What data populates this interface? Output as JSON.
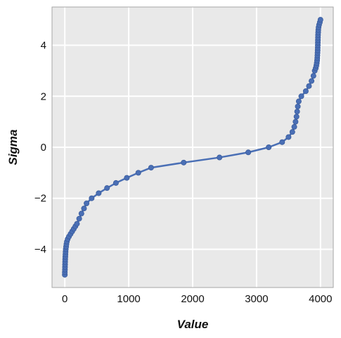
{
  "chart_data": {
    "type": "line",
    "title": "",
    "xlabel": "Value",
    "ylabel": "Sigma",
    "xlim": [
      -200,
      4200
    ],
    "ylim": [
      -5.5,
      5.5
    ],
    "grid": true,
    "legend": "none",
    "markers": true,
    "colors": {
      "plot_background": "#e9e9e9",
      "grid": "#ffffff",
      "frame": "#a6a6a6",
      "series": "#4a6fb5"
    },
    "x_ticks": [
      {
        "value": 0,
        "label": "0"
      },
      {
        "value": 1000,
        "label": "1000"
      },
      {
        "value": 2000,
        "label": "2000"
      },
      {
        "value": 3000,
        "label": "3000"
      },
      {
        "value": 4000,
        "label": "4000"
      }
    ],
    "y_ticks": [
      {
        "value": -4,
        "label": "−4"
      },
      {
        "value": -2,
        "label": "−2"
      },
      {
        "value": 0,
        "label": "0"
      },
      {
        "value": 2,
        "label": "2"
      },
      {
        "value": 4,
        "label": "4"
      }
    ],
    "series": [
      {
        "points": [
          {
            "x": 0,
            "y": -5.0
          },
          {
            "x": 0,
            "y": -4.9
          },
          {
            "x": 2,
            "y": -4.8
          },
          {
            "x": 3,
            "y": -4.7
          },
          {
            "x": 4,
            "y": -4.6
          },
          {
            "x": 5,
            "y": -4.5
          },
          {
            "x": 6,
            "y": -4.4
          },
          {
            "x": 8,
            "y": -4.3
          },
          {
            "x": 10,
            "y": -4.2
          },
          {
            "x": 12,
            "y": -4.1
          },
          {
            "x": 15,
            "y": -4.0
          },
          {
            "x": 20,
            "y": -3.9
          },
          {
            "x": 25,
            "y": -3.8
          },
          {
            "x": 32,
            "y": -3.7
          },
          {
            "x": 45,
            "y": -3.6
          },
          {
            "x": 65,
            "y": -3.5
          },
          {
            "x": 90,
            "y": -3.4
          },
          {
            "x": 115,
            "y": -3.3
          },
          {
            "x": 140,
            "y": -3.2
          },
          {
            "x": 165,
            "y": -3.1
          },
          {
            "x": 190,
            "y": -3.0
          },
          {
            "x": 225,
            "y": -2.8
          },
          {
            "x": 260,
            "y": -2.6
          },
          {
            "x": 300,
            "y": -2.4
          },
          {
            "x": 340,
            "y": -2.2
          },
          {
            "x": 420,
            "y": -2.0
          },
          {
            "x": 530,
            "y": -1.8
          },
          {
            "x": 660,
            "y": -1.6
          },
          {
            "x": 800,
            "y": -1.4
          },
          {
            "x": 970,
            "y": -1.2
          },
          {
            "x": 1150,
            "y": -1.0
          },
          {
            "x": 1350,
            "y": -0.8
          },
          {
            "x": 1860,
            "y": -0.6
          },
          {
            "x": 2420,
            "y": -0.4
          },
          {
            "x": 2870,
            "y": -0.2
          },
          {
            "x": 3190,
            "y": 0.0
          },
          {
            "x": 3400,
            "y": 0.2
          },
          {
            "x": 3500,
            "y": 0.4
          },
          {
            "x": 3560,
            "y": 0.6
          },
          {
            "x": 3590,
            "y": 0.8
          },
          {
            "x": 3610,
            "y": 1.0
          },
          {
            "x": 3625,
            "y": 1.2
          },
          {
            "x": 3635,
            "y": 1.4
          },
          {
            "x": 3645,
            "y": 1.6
          },
          {
            "x": 3660,
            "y": 1.8
          },
          {
            "x": 3700,
            "y": 2.0
          },
          {
            "x": 3770,
            "y": 2.2
          },
          {
            "x": 3820,
            "y": 2.4
          },
          {
            "x": 3860,
            "y": 2.6
          },
          {
            "x": 3890,
            "y": 2.8
          },
          {
            "x": 3910,
            "y": 3.0
          },
          {
            "x": 3925,
            "y": 3.1
          },
          {
            "x": 3935,
            "y": 3.2
          },
          {
            "x": 3942,
            "y": 3.3
          },
          {
            "x": 3947,
            "y": 3.4
          },
          {
            "x": 3950,
            "y": 3.5
          },
          {
            "x": 3952,
            "y": 3.6
          },
          {
            "x": 3954,
            "y": 3.7
          },
          {
            "x": 3956,
            "y": 3.8
          },
          {
            "x": 3957,
            "y": 3.9
          },
          {
            "x": 3958,
            "y": 4.0
          },
          {
            "x": 3959,
            "y": 4.1
          },
          {
            "x": 3960,
            "y": 4.2
          },
          {
            "x": 3961,
            "y": 4.3
          },
          {
            "x": 3962,
            "y": 4.4
          },
          {
            "x": 3964,
            "y": 4.5
          },
          {
            "x": 3966,
            "y": 4.6
          },
          {
            "x": 3970,
            "y": 4.7
          },
          {
            "x": 3978,
            "y": 4.8
          },
          {
            "x": 3990,
            "y": 4.9
          },
          {
            "x": 4000,
            "y": 5.0
          }
        ]
      }
    ]
  }
}
